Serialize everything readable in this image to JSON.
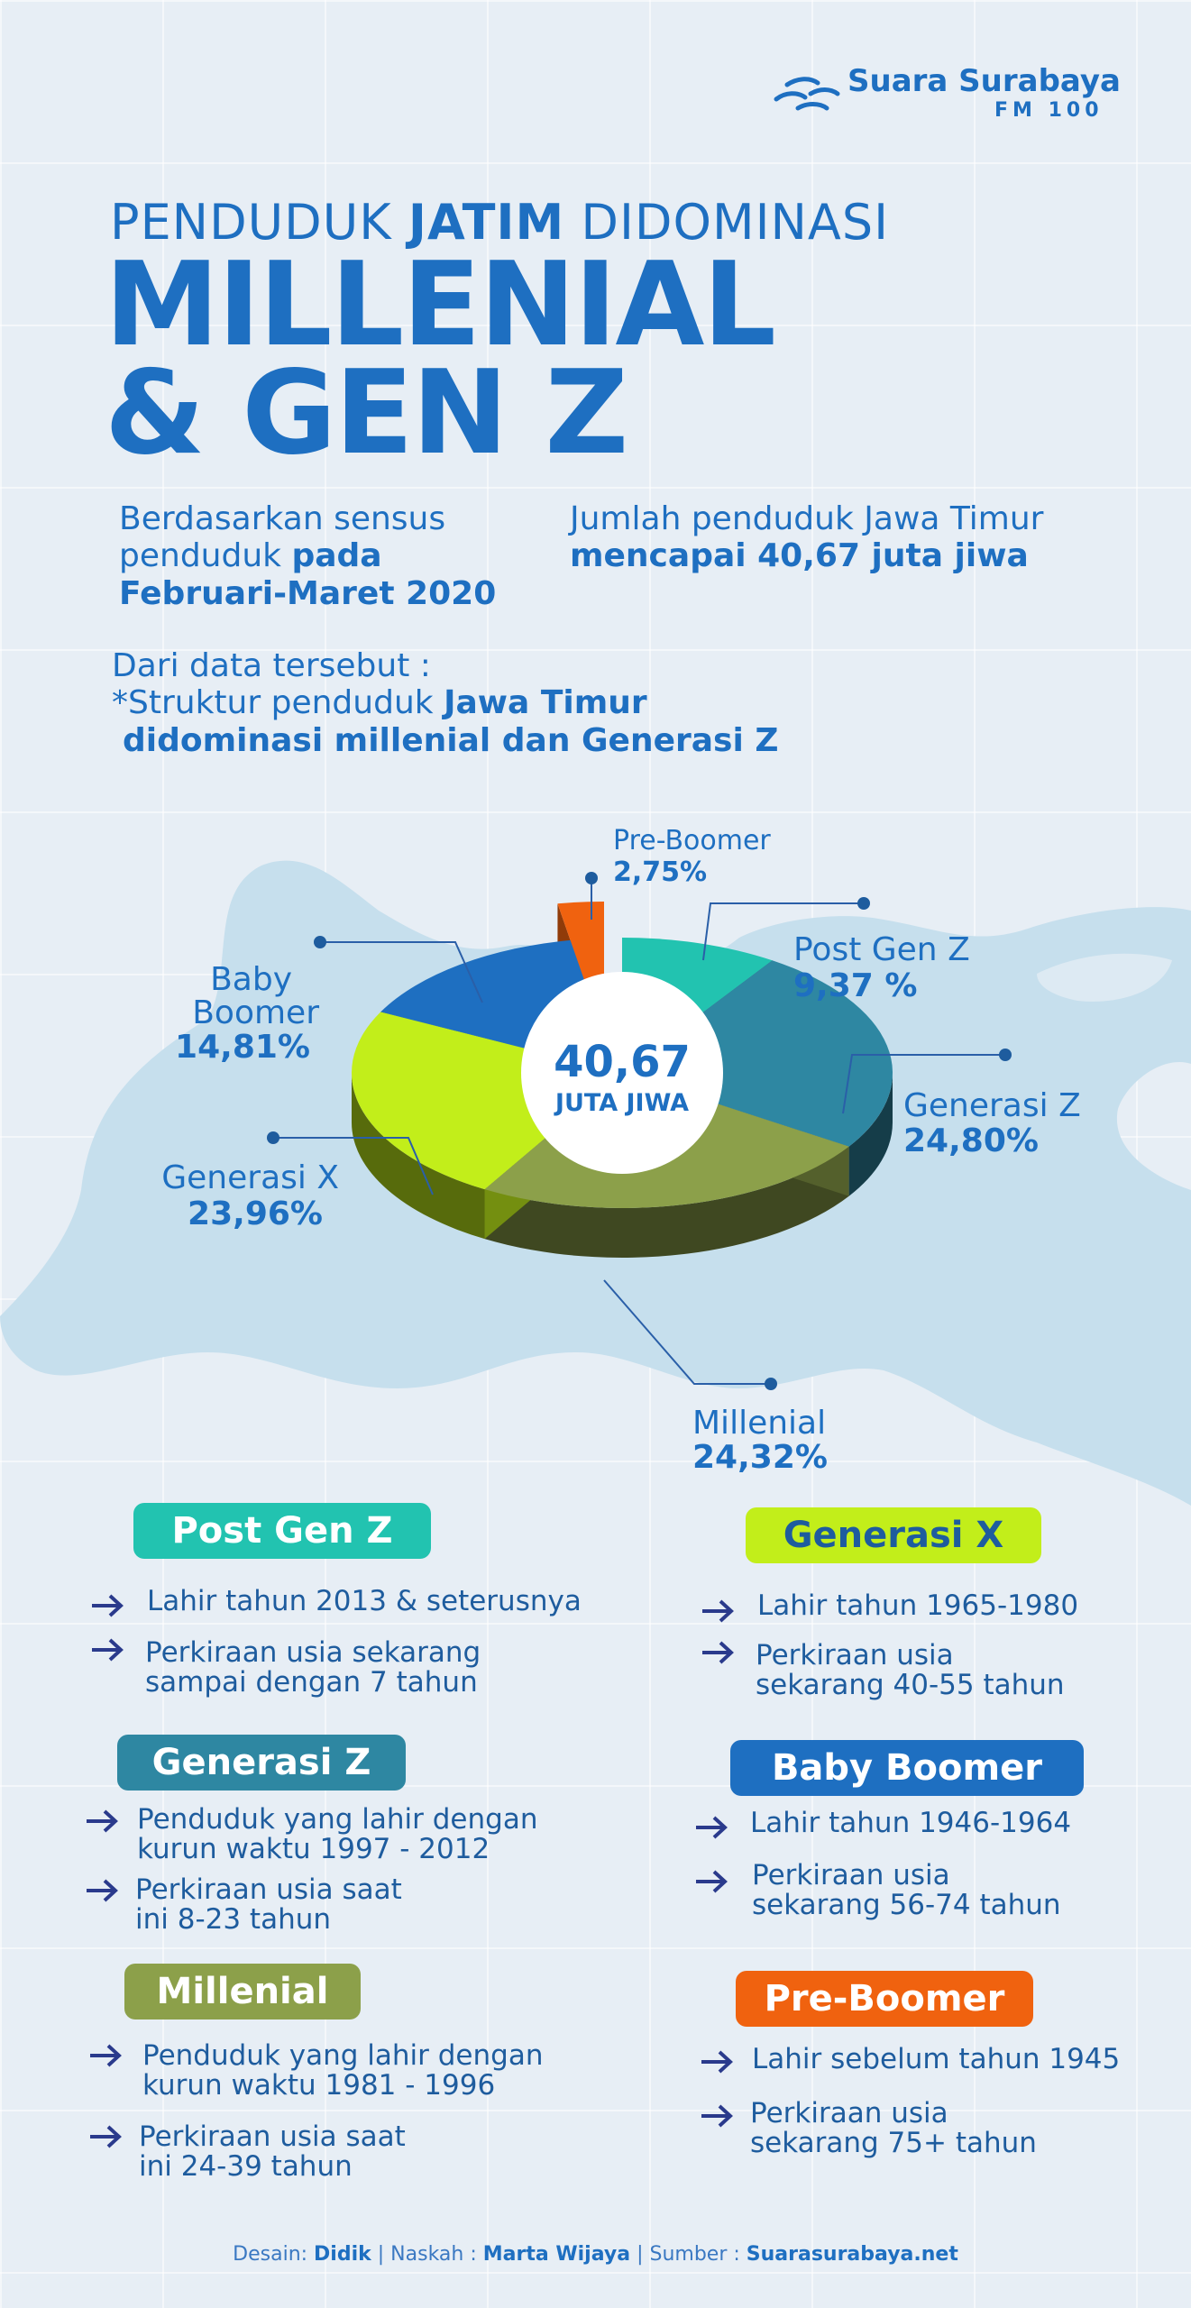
{
  "logo": {
    "name": "Suara Surabaya",
    "sub": "FM 100"
  },
  "headline": {
    "line1_pre": "PENDUDUK ",
    "line1_bold": "JATIM",
    "line1_post": " DIDOMINASI",
    "line2": "MILLENIAL",
    "line3": "& GEN Z"
  },
  "intro": {
    "left_1": "Berdasarkan sensus",
    "left_2a": "penduduk ",
    "left_2b": "pada",
    "left_3": "Februari-Maret 2020",
    "right_1": "Jumlah penduduk Jawa Timur",
    "right_2": "mencapai 40,67 juta jiwa",
    "from_data": "Dari data tersebut :",
    "struct_a": "*Struktur penduduk ",
    "struct_b": "Jawa Timur",
    "struct_c": "didominasi millenial dan Generasi Z"
  },
  "chart_data": {
    "type": "pie",
    "center_value": "40,67",
    "center_label": "JUTA JIWA",
    "slices": [
      {
        "label": "Post Gen Z",
        "value": 9.37,
        "value_text": "9,37 %",
        "color": "#22c3b0"
      },
      {
        "label": "Generasi Z",
        "value": 24.8,
        "value_text": "24,80%",
        "color": "#2e87a2"
      },
      {
        "label": "Millenial",
        "value": 24.32,
        "value_text": "24,32%",
        "color": "#8ca04a"
      },
      {
        "label": "Generasi X",
        "value": 23.96,
        "value_text": "23,96%",
        "color": "#c2ee1a"
      },
      {
        "label": "Baby Boomer",
        "value": 14.81,
        "value_text": "14,81%",
        "color": "#1e6fc1"
      },
      {
        "label": "Pre-Boomer",
        "value": 2.75,
        "value_text": "2,75%",
        "color": "#f0620f"
      }
    ],
    "labels_extra": {
      "baby_l1": "Baby",
      "baby_l2": "Boomer"
    }
  },
  "legend": {
    "post_gen_z": {
      "title": "Post Gen Z",
      "item1": "Lahir tahun 2013 & seterusnya",
      "item2a": "Perkiraan usia sekarang",
      "item2b": "sampai dengan 7 tahun"
    },
    "generasi_x": {
      "title": "Generasi X",
      "item1": "Lahir tahun 1965-1980",
      "item2a": "Perkiraan usia",
      "item2b": "sekarang 40-55 tahun"
    },
    "generasi_z": {
      "title": "Generasi Z",
      "item1a": "Penduduk yang lahir dengan",
      "item1b": "kurun waktu 1997 - 2012",
      "item2a": "Perkiraan usia saat",
      "item2b": "ini 8-23 tahun"
    },
    "baby_boomer": {
      "title": "Baby Boomer",
      "item1": "Lahir tahun 1946-1964",
      "item2a": "Perkiraan usia",
      "item2b": "sekarang 56-74 tahun"
    },
    "millenial": {
      "title": "Millenial",
      "item1a": "Penduduk yang lahir dengan",
      "item1b": "kurun waktu 1981 - 1996",
      "item2a": "Perkiraan usia saat",
      "item2b": "ini 24-39 tahun"
    },
    "pre_boomer": {
      "title": "Pre-Boomer",
      "item1": "Lahir sebelum tahun 1945",
      "item2a": "Perkiraan usia",
      "item2b": "sekarang 75+ tahun"
    }
  },
  "footer": {
    "desain_label": "Desain: ",
    "desain": "Didik",
    "sep1": " | Naskah : ",
    "naskah": "Marta Wijaya",
    "sep2": " | Sumber : ",
    "sumber": "Suarasurabaya.net"
  },
  "colors": {
    "brand": "#1e6fc1",
    "background": "#e7eef5"
  }
}
